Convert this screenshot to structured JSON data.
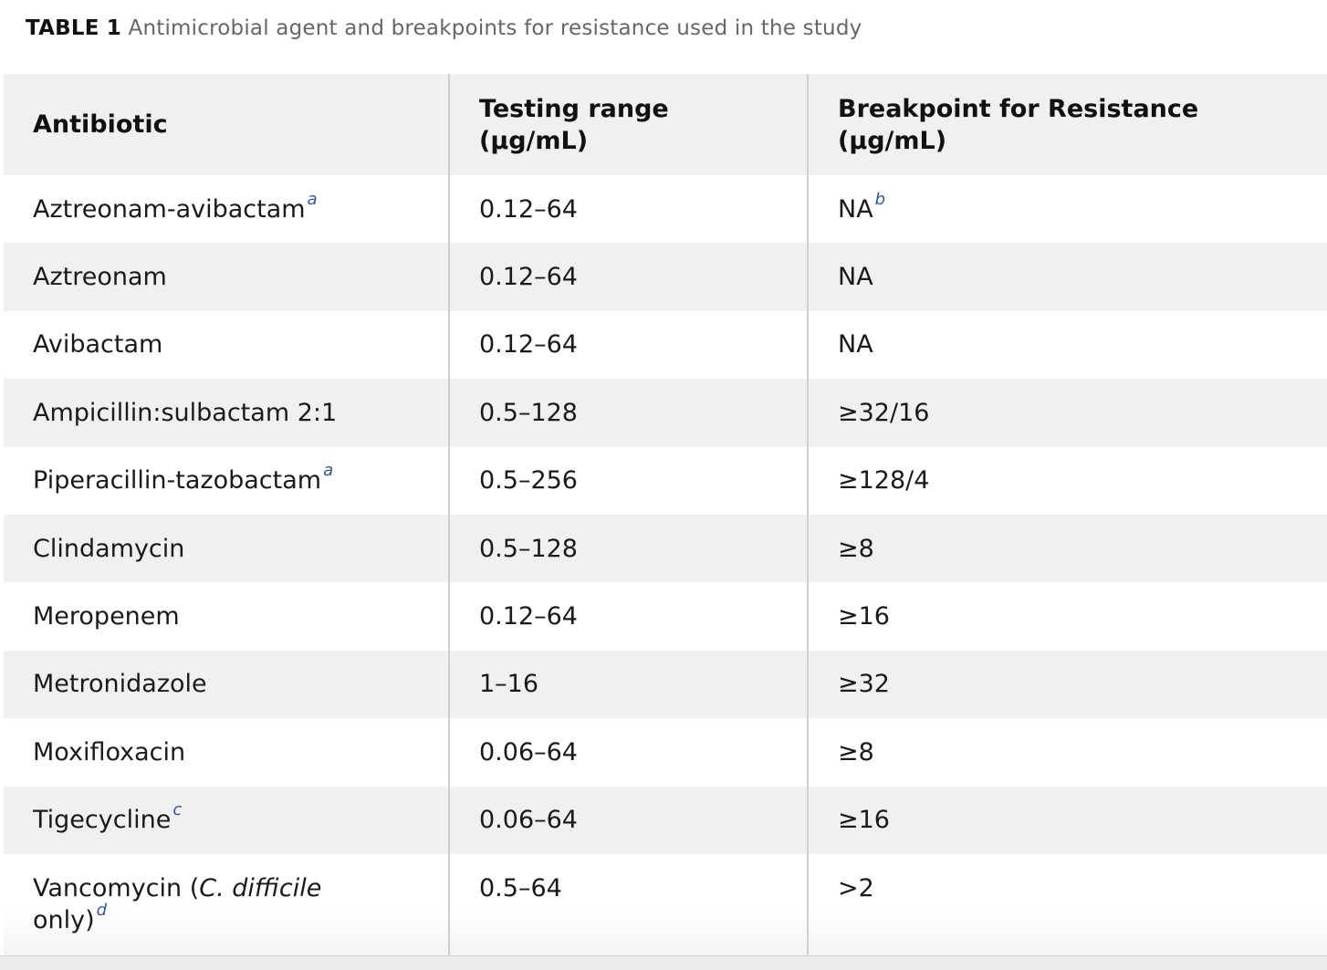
{
  "caption": {
    "label": "TABLE 1",
    "text": "Antimicrobial agent and breakpoints for resistance used in the study"
  },
  "table": {
    "headers": {
      "col1": "Antibiotic",
      "col2_line1": "Testing range",
      "col2_line2": "(µg/mL)",
      "col3_line1": "Breakpoint for Resistance",
      "col3_line2": "(µg/mL)"
    },
    "rows": [
      {
        "antibiotic": "Aztreonam-avibactam",
        "antibiotic_fn": "a",
        "range": "0.12–64",
        "breakpoint": "NA",
        "breakpoint_fn": "b"
      },
      {
        "antibiotic": "Aztreonam",
        "range": "0.12–64",
        "breakpoint": "NA"
      },
      {
        "antibiotic": "Avibactam",
        "range": "0.12–64",
        "breakpoint": "NA"
      },
      {
        "antibiotic": "Ampicillin:sulbactam 2:1",
        "range": "0.5–128",
        "breakpoint": "≥32/16"
      },
      {
        "antibiotic": "Piperacillin-tazobactam",
        "antibiotic_fn": "a",
        "range": "0.5–256",
        "breakpoint": "≥128/4"
      },
      {
        "antibiotic": "Clindamycin",
        "range": "0.5–128",
        "breakpoint": "≥8"
      },
      {
        "antibiotic": "Meropenem",
        "range": "0.12–64",
        "breakpoint": "≥16"
      },
      {
        "antibiotic": "Metronidazole",
        "range": "1–16",
        "breakpoint": "≥32"
      },
      {
        "antibiotic": "Moxifloxacin",
        "range": "0.06–64",
        "breakpoint": "≥8"
      },
      {
        "antibiotic": "Tigecycline",
        "antibiotic_fn": "c",
        "range": "0.06–64",
        "breakpoint": "≥16"
      },
      {
        "antibiotic_pre": "Vancomycin (",
        "antibiotic_italic": "C. difficile",
        "antibiotic_post": "only)",
        "antibiotic_fn": "d",
        "range": "0.5–64",
        "breakpoint": ">2"
      }
    ]
  }
}
